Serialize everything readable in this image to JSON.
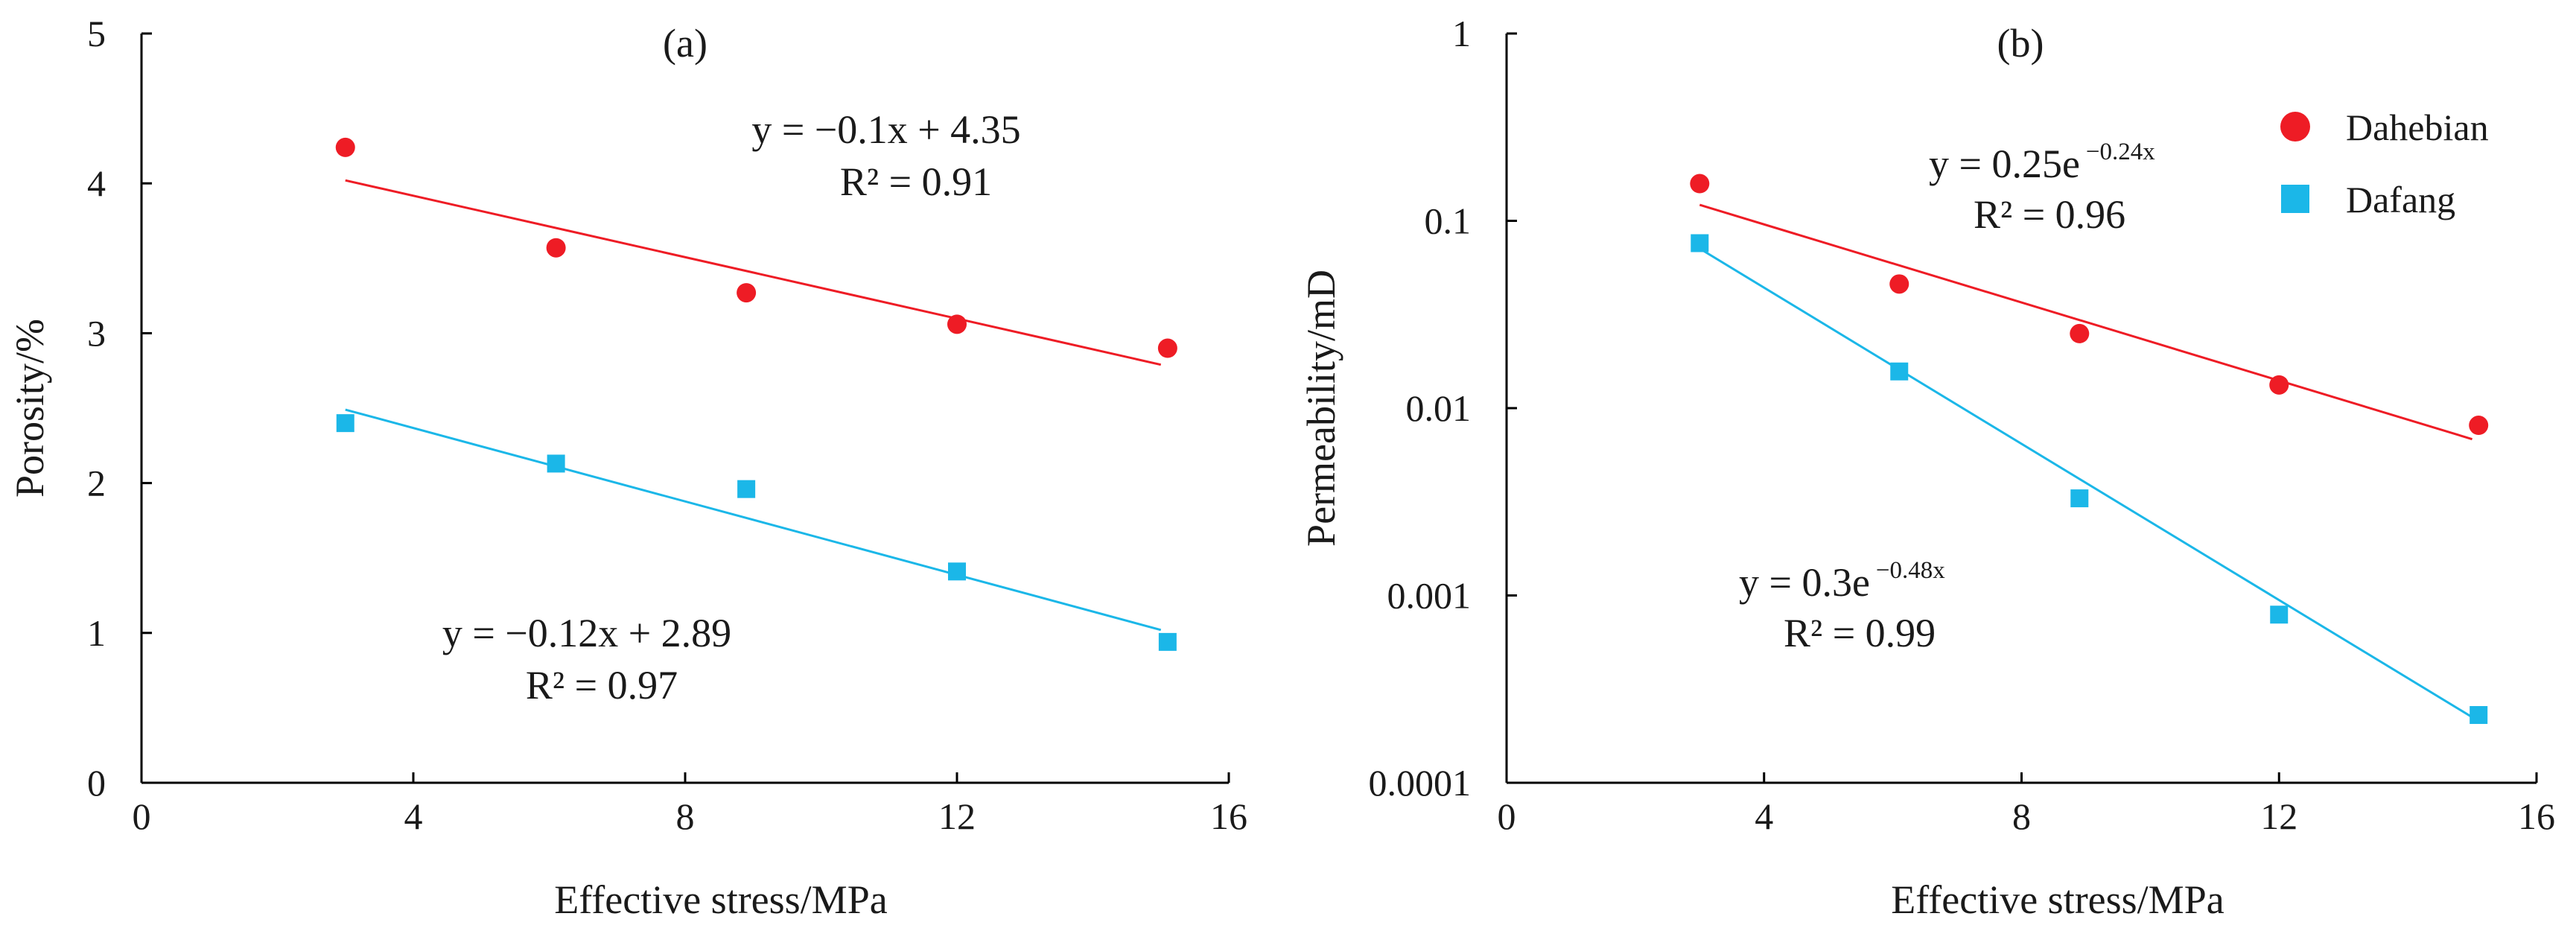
{
  "chart_data": [
    {
      "type": "scatter",
      "panel_label": "(a)",
      "xlabel": "Effective stress/MPa",
      "ylabel": "Porosity/%",
      "xlim": [
        0,
        16
      ],
      "ylim": [
        0,
        5
      ],
      "yscale": "linear",
      "xticks": [
        "0",
        "4",
        "8",
        "12",
        "16"
      ],
      "yticks": [
        "0",
        "1",
        "2",
        "3",
        "4",
        "5"
      ],
      "series": [
        {
          "name": "Dahebian",
          "color": "#ee1c25",
          "marker": "circle",
          "x": [
            3,
            6.1,
            8.9,
            12,
            15.1
          ],
          "y": [
            4.24,
            3.57,
            3.27,
            3.06,
            2.9
          ],
          "fit": {
            "type": "linear",
            "x": [
              3,
              15
            ],
            "y": [
              4.02,
              2.79
            ]
          },
          "equation": {
            "text": "y = −0.1x + 4.35",
            "r2": "R² = 0.91"
          }
        },
        {
          "name": "Dafang",
          "color": "#1bb7e8",
          "marker": "square",
          "x": [
            3,
            6.1,
            8.9,
            12,
            15.1
          ],
          "y": [
            2.4,
            2.13,
            1.96,
            1.41,
            0.94
          ],
          "fit": {
            "type": "linear",
            "x": [
              3,
              15
            ],
            "y": [
              2.49,
              1.02
            ]
          },
          "equation": {
            "text": "y = −0.12x + 2.89",
            "r2": "R² = 0.97"
          }
        }
      ]
    },
    {
      "type": "scatter",
      "panel_label": "(b)",
      "xlabel": "Effective stress/MPa",
      "ylabel": "Permeability/mD",
      "xlim": [
        0,
        16
      ],
      "ylim": [
        0.0001,
        1
      ],
      "yscale": "log",
      "xticks": [
        "0",
        "4",
        "8",
        "12",
        "16"
      ],
      "yticks": [
        "0.0001",
        "0.001",
        "0.01",
        "0.1",
        "1"
      ],
      "legend": {
        "position": "top-right"
      },
      "series": [
        {
          "name": "Dahebian",
          "color": "#ee1c25",
          "marker": "circle",
          "x": [
            3,
            6.1,
            8.9,
            12,
            15.1
          ],
          "y": [
            0.158,
            0.046,
            0.025,
            0.0133,
            0.0081
          ],
          "fit": {
            "type": "exponential",
            "a": 0.25,
            "b": -0.24,
            "x": [
              3,
              15
            ]
          },
          "equation": {
            "base": "y = 0.25e",
            "exp": "−0.24x",
            "r2": "R² = 0.96"
          }
        },
        {
          "name": "Dafang",
          "color": "#1bb7e8",
          "marker": "square",
          "x": [
            3,
            6.1,
            8.9,
            12,
            15.1
          ],
          "y": [
            0.076,
            0.0157,
            0.0033,
            0.00079,
            0.00023
          ],
          "fit": {
            "type": "exponential",
            "a": 0.3,
            "b": -0.48,
            "x": [
              3,
              15
            ]
          },
          "equation": {
            "base": "y = 0.3e",
            "exp": "−0.48x",
            "r2": "R² = 0.99"
          }
        }
      ]
    }
  ]
}
